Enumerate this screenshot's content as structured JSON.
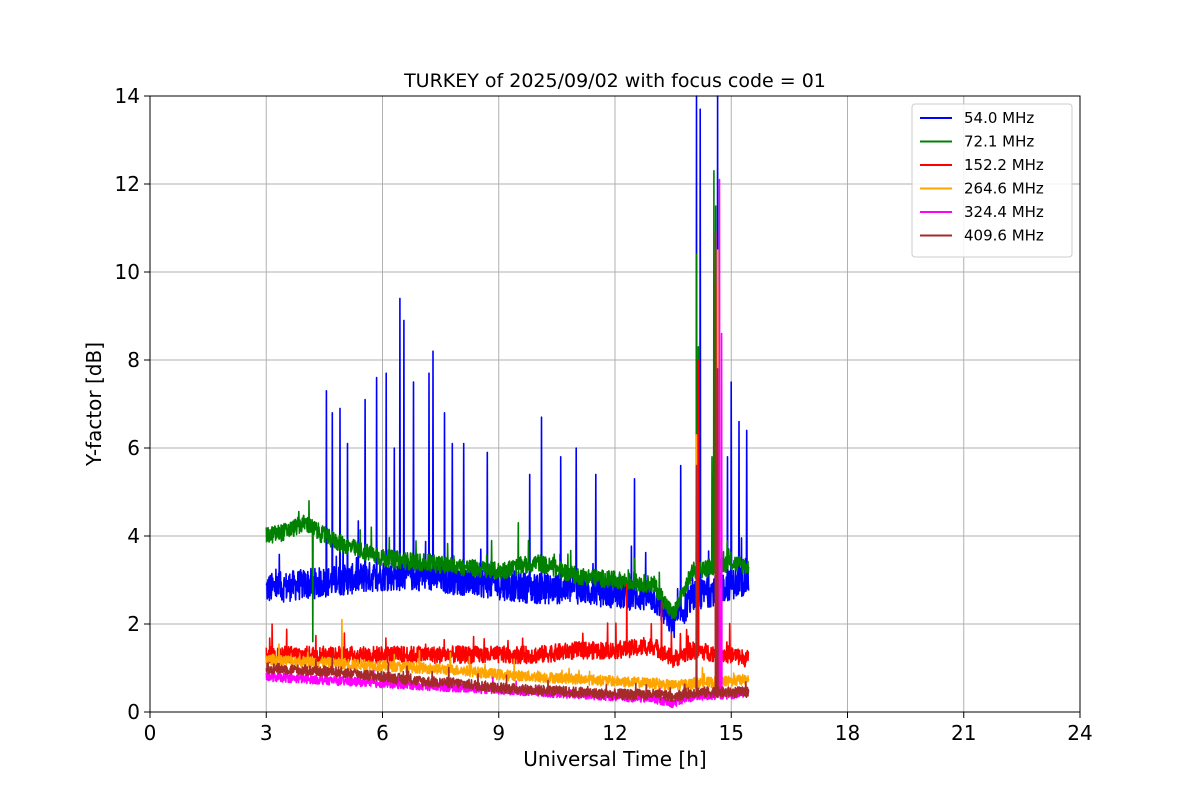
{
  "chart_data": {
    "type": "line",
    "title": "TURKEY of 2025/09/02 with focus code = 01",
    "xlabel": "Universal Time [h]",
    "ylabel": "Y-factor [dB]",
    "xlim": [
      0,
      24
    ],
    "ylim": [
      0,
      14
    ],
    "xticks": [
      0,
      3,
      6,
      9,
      12,
      15,
      18,
      21,
      24
    ],
    "yticks": [
      0,
      2,
      4,
      6,
      8,
      10,
      12,
      14
    ],
    "grid": true,
    "legend_position": "top-right",
    "series": [
      {
        "name": "  54.0 MHz",
        "color": "#0000ff",
        "noise": 0.35,
        "points": [
          [
            3.0,
            2.8
          ],
          [
            4.0,
            2.9
          ],
          [
            5.0,
            3.0
          ],
          [
            6.0,
            3.1
          ],
          [
            7.0,
            3.1
          ],
          [
            8.0,
            3.0
          ],
          [
            9.0,
            2.9
          ],
          [
            10.0,
            2.8
          ],
          [
            11.0,
            2.8
          ],
          [
            12.0,
            2.7
          ],
          [
            13.0,
            2.6
          ],
          [
            13.5,
            2.0
          ],
          [
            14.0,
            2.6
          ],
          [
            15.0,
            2.9
          ],
          [
            15.45,
            3.0
          ]
        ],
        "spikes": [
          [
            4.55,
            7.3
          ],
          [
            4.7,
            6.8
          ],
          [
            4.9,
            6.9
          ],
          [
            5.1,
            6.1
          ],
          [
            5.55,
            7.1
          ],
          [
            5.85,
            7.6
          ],
          [
            6.1,
            7.7
          ],
          [
            6.3,
            6.0
          ],
          [
            6.45,
            9.4
          ],
          [
            6.55,
            8.9
          ],
          [
            6.8,
            7.5
          ],
          [
            7.2,
            7.7
          ],
          [
            7.3,
            8.2
          ],
          [
            7.6,
            6.8
          ],
          [
            7.8,
            6.1
          ],
          [
            8.1,
            6.1
          ],
          [
            8.7,
            5.9
          ],
          [
            9.8,
            5.4
          ],
          [
            10.1,
            6.7
          ],
          [
            10.6,
            5.8
          ],
          [
            11.0,
            6.0
          ],
          [
            11.5,
            5.4
          ],
          [
            12.5,
            5.3
          ],
          [
            13.7,
            5.6
          ],
          [
            14.1,
            14.0
          ],
          [
            14.2,
            13.7
          ],
          [
            14.65,
            14.0
          ],
          [
            14.9,
            5.8
          ],
          [
            15.0,
            7.5
          ],
          [
            15.2,
            6.6
          ],
          [
            15.4,
            6.4
          ]
        ]
      },
      {
        "name": "  72.1 MHz",
        "color": "#008000",
        "noise": 0.2,
        "points": [
          [
            3.0,
            4.0
          ],
          [
            3.5,
            4.1
          ],
          [
            4.0,
            4.3
          ],
          [
            4.5,
            4.0
          ],
          [
            5.0,
            3.8
          ],
          [
            6.0,
            3.5
          ],
          [
            7.0,
            3.4
          ],
          [
            8.0,
            3.3
          ],
          [
            9.0,
            3.2
          ],
          [
            10.0,
            3.4
          ],
          [
            11.0,
            3.1
          ],
          [
            12.0,
            3.0
          ],
          [
            13.0,
            2.9
          ],
          [
            13.5,
            2.2
          ],
          [
            14.0,
            3.2
          ],
          [
            15.0,
            3.4
          ],
          [
            15.45,
            3.3
          ]
        ],
        "spikes": [
          [
            4.2,
            1.6
          ],
          [
            4.1,
            4.8
          ],
          [
            9.5,
            4.3
          ],
          [
            14.1,
            10.4
          ],
          [
            14.15,
            8.3
          ],
          [
            14.55,
            12.3
          ],
          [
            14.6,
            11.5
          ],
          [
            14.5,
            5.8
          ]
        ]
      },
      {
        "name": "  152.2 MHz",
        "color": "#ff0000",
        "noise": 0.2,
        "points": [
          [
            3.0,
            1.3
          ],
          [
            4.0,
            1.3
          ],
          [
            5.0,
            1.3
          ],
          [
            6.0,
            1.3
          ],
          [
            7.0,
            1.3
          ],
          [
            8.0,
            1.3
          ],
          [
            9.0,
            1.3
          ],
          [
            10.0,
            1.3
          ],
          [
            11.0,
            1.4
          ],
          [
            12.0,
            1.4
          ],
          [
            13.0,
            1.5
          ],
          [
            13.5,
            1.2
          ],
          [
            14.0,
            1.4
          ],
          [
            15.0,
            1.3
          ],
          [
            15.45,
            1.2
          ]
        ],
        "spikes": [
          [
            3.15,
            2.0
          ],
          [
            12.3,
            2.9
          ],
          [
            13.2,
            2.5
          ],
          [
            14.1,
            6.2
          ],
          [
            14.15,
            8.0
          ],
          [
            14.6,
            10.8
          ],
          [
            14.65,
            9.7
          ]
        ]
      },
      {
        "name": "  264.6 MHz",
        "color": "#ffa500",
        "noise": 0.12,
        "points": [
          [
            3.0,
            1.2
          ],
          [
            4.0,
            1.15
          ],
          [
            5.0,
            1.1
          ],
          [
            6.0,
            1.05
          ],
          [
            7.0,
            1.0
          ],
          [
            8.0,
            0.95
          ],
          [
            9.0,
            0.85
          ],
          [
            10.0,
            0.8
          ],
          [
            11.0,
            0.75
          ],
          [
            12.0,
            0.7
          ],
          [
            13.0,
            0.65
          ],
          [
            13.5,
            0.6
          ],
          [
            14.0,
            0.65
          ],
          [
            15.0,
            0.7
          ],
          [
            15.45,
            0.75
          ]
        ],
        "spikes": [
          [
            4.95,
            2.1
          ],
          [
            14.1,
            6.3
          ],
          [
            14.65,
            10.5
          ]
        ]
      },
      {
        "name": "  324.4 MHz",
        "color": "#ff00ff",
        "noise": 0.1,
        "points": [
          [
            3.0,
            0.8
          ],
          [
            4.0,
            0.75
          ],
          [
            5.0,
            0.7
          ],
          [
            6.0,
            0.65
          ],
          [
            7.0,
            0.6
          ],
          [
            8.0,
            0.55
          ],
          [
            9.0,
            0.5
          ],
          [
            10.0,
            0.45
          ],
          [
            11.0,
            0.4
          ],
          [
            12.0,
            0.35
          ],
          [
            13.0,
            0.3
          ],
          [
            13.5,
            0.2
          ],
          [
            14.0,
            0.35
          ],
          [
            15.0,
            0.4
          ],
          [
            15.45,
            0.45
          ]
        ],
        "spikes": [
          [
            14.1,
            4.0
          ],
          [
            14.7,
            12.1
          ],
          [
            14.75,
            8.6
          ]
        ]
      },
      {
        "name": "  409.6 MHz",
        "color": "#a52a2a",
        "noise": 0.12,
        "points": [
          [
            3.0,
            1.0
          ],
          [
            4.0,
            0.95
          ],
          [
            5.0,
            0.9
          ],
          [
            6.0,
            0.8
          ],
          [
            7.0,
            0.7
          ],
          [
            8.0,
            0.65
          ],
          [
            9.0,
            0.55
          ],
          [
            10.0,
            0.5
          ],
          [
            11.0,
            0.45
          ],
          [
            12.0,
            0.4
          ],
          [
            13.0,
            0.4
          ],
          [
            13.5,
            0.35
          ],
          [
            14.0,
            0.45
          ],
          [
            15.0,
            0.45
          ],
          [
            15.45,
            0.45
          ]
        ],
        "spikes": [
          [
            14.1,
            5.6
          ],
          [
            14.6,
            10.9
          ],
          [
            14.65,
            7.8
          ]
        ]
      }
    ]
  }
}
